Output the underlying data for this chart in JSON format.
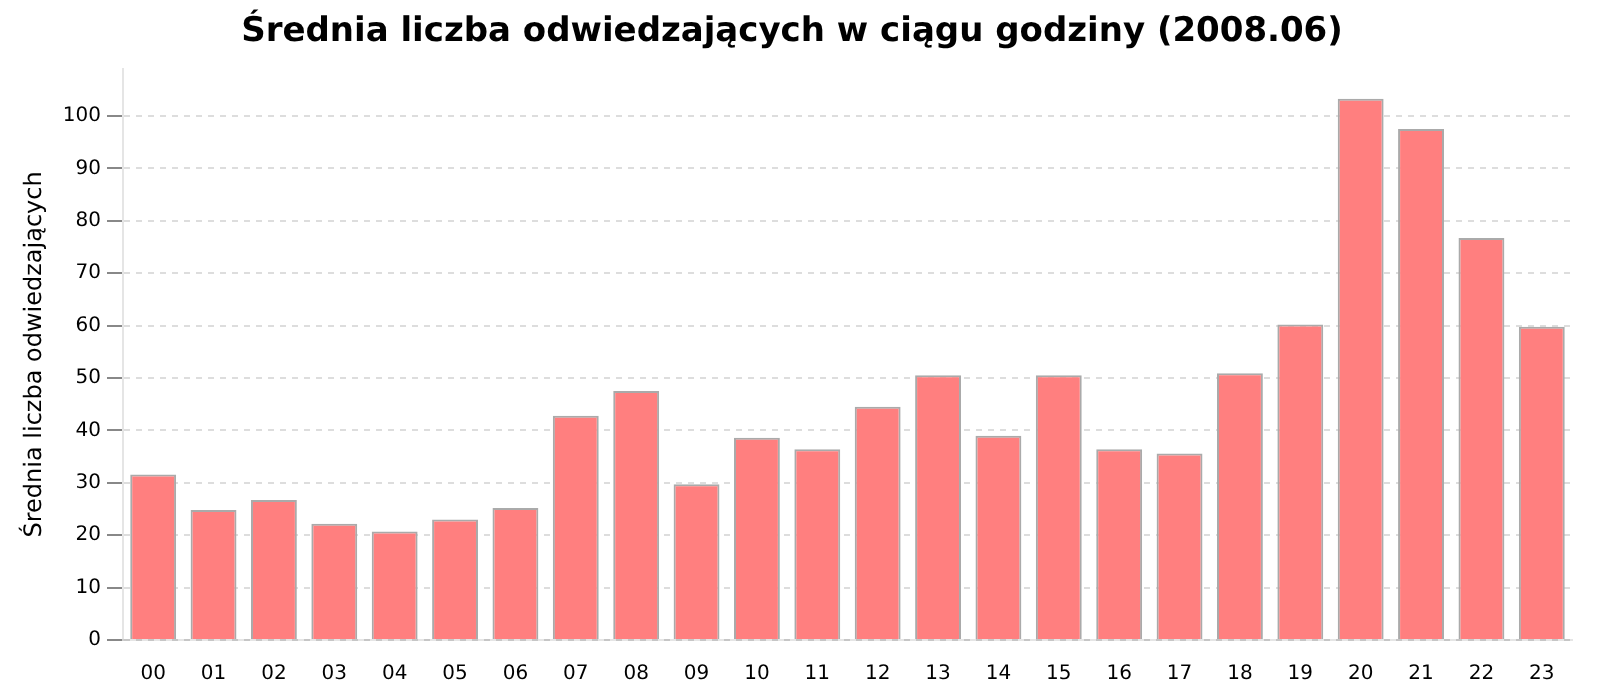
{
  "chart_data": {
    "type": "bar",
    "title": "Średnia liczba odwiedzających w ciągu godziny (2008.06)",
    "ylabel": "Średnia liczba odwiedzających",
    "categories": [
      "00",
      "01",
      "02",
      "03",
      "04",
      "05",
      "06",
      "07",
      "08",
      "09",
      "10",
      "11",
      "12",
      "13",
      "14",
      "15",
      "16",
      "17",
      "18",
      "19",
      "20",
      "21",
      "22",
      "23"
    ],
    "values": [
      31.6,
      24.8,
      26.7,
      22.2,
      20.7,
      23,
      25.2,
      42.8,
      47.5,
      29.7,
      38.6,
      36.4,
      44.5,
      50.5,
      39,
      50.5,
      36.4,
      35.6,
      50.9,
      60.2,
      103.3,
      97.5,
      76.7,
      59.8
    ],
    "color": "#ff7f7f",
    "ylim": [
      0,
      109
    ],
    "yticks": [
      0,
      10,
      20,
      30,
      40,
      50,
      60,
      70,
      80,
      90,
      100
    ],
    "grid": "y",
    "legend": false
  }
}
